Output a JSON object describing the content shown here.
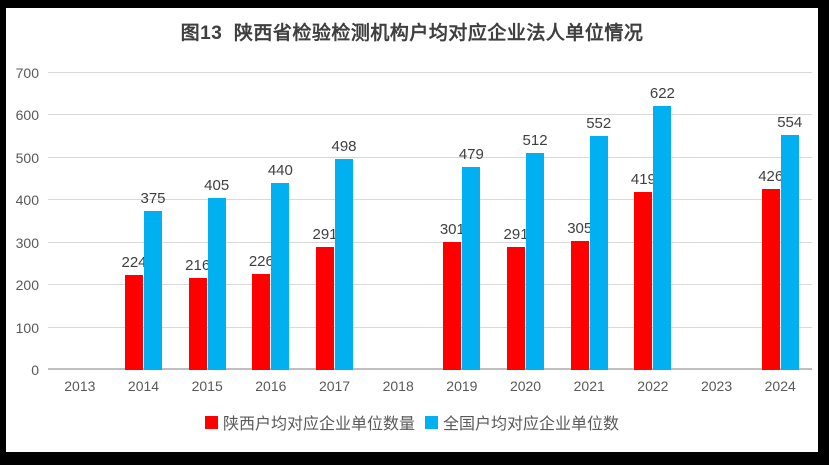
{
  "chart_data": {
    "type": "bar",
    "title": "图13  陕西省检验检测机构户均对应企业法人单位情况",
    "categories": [
      "2013",
      "2014",
      "2015",
      "2016",
      "2017",
      "2018",
      "2019",
      "2020",
      "2021",
      "2022",
      "2023",
      "2024"
    ],
    "series": [
      {
        "name": "陕西户均对应企业单位数量",
        "color": "#FF0000",
        "values": [
          null,
          224,
          216,
          226,
          291,
          null,
          301,
          291,
          305,
          419,
          null,
          426
        ]
      },
      {
        "name": "全国户均对应企业单位数",
        "color": "#00B0F0",
        "values": [
          null,
          375,
          405,
          440,
          498,
          null,
          479,
          512,
          552,
          622,
          null,
          554
        ]
      }
    ],
    "xlabel": "",
    "ylabel": "",
    "ylim": [
      0,
      700
    ],
    "ytick_step": 100,
    "yticks": [
      0,
      100,
      200,
      300,
      400,
      500,
      600,
      700
    ],
    "grid": true,
    "legend_position": "bottom",
    "data_labels": true
  },
  "colors": {
    "frame": "#000000",
    "background": "#FFFFFF",
    "gridline": "#D9D9D9",
    "axis_line": "#BFBFBF",
    "axis_text": "#595959",
    "data_label_text": "#404040",
    "title_text": "#3F3F3F",
    "series_shaanxi": "#FF0000",
    "series_national": "#00B0F0"
  }
}
